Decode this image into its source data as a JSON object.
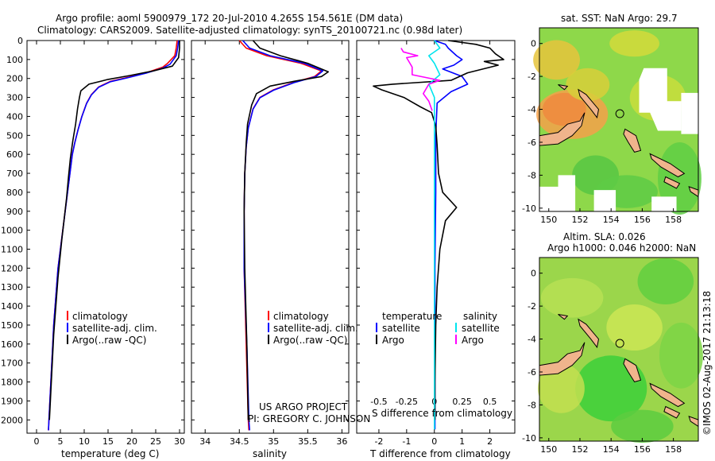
{
  "header": {
    "title1": "Argo profile: aoml 5900979_172 20-Jul-2010 4.265S 154.561E (DM data)",
    "title2": "Climatology: CARS2009. Satellite-adjusted climatology: synTS_20100721.nc (0.98d later)"
  },
  "colors": {
    "climatology": "#ff0000",
    "satellite": "#0000ff",
    "argo": "#000000",
    "salinity_satellite": "#00e5ee",
    "salinity_argo": "#ff00ff",
    "land": "#f0b48c"
  },
  "yaxis": {
    "ticks": [
      "0",
      "100",
      "200",
      "300",
      "400",
      "500",
      "600",
      "700",
      "800",
      "900",
      "1000",
      "1100",
      "1200",
      "1300",
      "1400",
      "1500",
      "1600",
      "1700",
      "1800",
      "1900",
      "2000"
    ]
  },
  "panels": {
    "temperature": {
      "xlabel": "temperature (deg C)",
      "ticks": [
        "0",
        "5",
        "10",
        "15",
        "20",
        "25",
        "30"
      ],
      "legend": [
        "climatology",
        "satellite-adj. clim.",
        "Argo(..raw -QC)"
      ]
    },
    "salinity": {
      "xlabel": "salinity",
      "ticks": [
        "34",
        "34.5",
        "35",
        "35.5",
        "36"
      ],
      "legend": [
        "climatology",
        "satellite-adj. clim.",
        "Argo(..raw -QC)"
      ],
      "credit1": "US ARGO PROJECT",
      "credit2": "PI: GREGORY C. JOHNSON"
    },
    "difference": {
      "xlabel": "T difference from climatology",
      "top_label": "S difference from climatology",
      "bottom_ticks": [
        "-2",
        "-1",
        "0",
        "1",
        "2"
      ],
      "top_ticks": [
        "-0.5",
        "-0.25",
        "0",
        "0.25",
        "0.5"
      ],
      "legend_temp_header": "temperature",
      "legend_sal_header": "salinity",
      "legend_temp": [
        "satellite",
        "Argo"
      ],
      "legend_sal": [
        "satellite",
        "Argo"
      ]
    }
  },
  "maps": {
    "sst_title": "sat. SST: NaN Argo: 29.7",
    "sla_title1": "Altim. SLA: 0.026",
    "sla_title2": "Argo h1000: 0.046 h2000: NaN",
    "lon_ticks": [
      "150",
      "152",
      "154",
      "156",
      "158"
    ],
    "lat_ticks": [
      "0",
      "-2",
      "-4",
      "-6",
      "-8",
      "-10"
    ],
    "float_lon": 154.561,
    "float_lat": -4.265
  },
  "stamp": "©IMOS 02-Aug-2017 21:13:18",
  "chart_data": [
    {
      "type": "line",
      "name": "temperature",
      "xlabel": "temperature (deg C)",
      "ylabel": "",
      "xlim": [
        -2,
        31
      ],
      "ylim": [
        2070,
        0
      ],
      "grid": false,
      "legend": "bottom-right",
      "series": [
        {
          "name": "climatology",
          "points": [
            [
              29.5,
              0
            ],
            [
              29.3,
              40
            ],
            [
              29.0,
              80
            ],
            [
              27.5,
              120
            ],
            [
              26.5,
              140
            ],
            [
              23,
              170
            ],
            [
              19,
              195
            ],
            [
              15.5,
              215
            ],
            [
              13,
              245
            ],
            [
              11.5,
              285
            ],
            [
              10.5,
              330
            ],
            [
              9.5,
              400
            ],
            [
              8.7,
              470
            ],
            [
              8,
              540
            ],
            [
              7.5,
              600
            ],
            [
              7,
              700
            ],
            [
              6.5,
              800
            ],
            [
              6,
              900
            ],
            [
              5.5,
              1000
            ],
            [
              5,
              1100
            ],
            [
              4.5,
              1200
            ],
            [
              4.2,
              1300
            ],
            [
              3.9,
              1400
            ],
            [
              3.6,
              1500
            ],
            [
              3.4,
              1600
            ],
            [
              3.2,
              1700
            ],
            [
              3,
              1800
            ],
            [
              2.8,
              1900
            ],
            [
              2.6,
              2000
            ],
            [
              2.5,
              2055
            ]
          ]
        },
        {
          "name": "satellite-adj. clim.",
          "points": [
            [
              29.8,
              0
            ],
            [
              29.6,
              40
            ],
            [
              29.3,
              80
            ],
            [
              28,
              125
            ],
            [
              26.5,
              145
            ],
            [
              23,
              172
            ],
            [
              19,
              197
            ],
            [
              15.5,
              217
            ],
            [
              13,
              247
            ],
            [
              11.5,
              287
            ],
            [
              10.5,
              332
            ],
            [
              9.5,
              402
            ],
            [
              8.7,
              472
            ],
            [
              8,
              542
            ],
            [
              7.5,
              602
            ],
            [
              7,
              702
            ],
            [
              6.5,
              802
            ],
            [
              6,
              902
            ],
            [
              5.5,
              1002
            ],
            [
              5,
              1102
            ],
            [
              4.5,
              1202
            ],
            [
              4.2,
              1302
            ],
            [
              3.9,
              1402
            ],
            [
              3.6,
              1502
            ],
            [
              3.4,
              1602
            ],
            [
              3.2,
              1702
            ],
            [
              3,
              1802
            ],
            [
              2.8,
              1902
            ],
            [
              2.6,
              2002
            ],
            [
              2.5,
              2055
            ]
          ]
        },
        {
          "name": "Argo(..raw -QC)",
          "points": [
            [
              30,
              0
            ],
            [
              30,
              40
            ],
            [
              29.8,
              90
            ],
            [
              28.5,
              135
            ],
            [
              24.5,
              160
            ],
            [
              19.5,
              185
            ],
            [
              15,
              205
            ],
            [
              11,
              230
            ],
            [
              9.3,
              265
            ],
            [
              9,
              300
            ],
            [
              8.6,
              360
            ],
            [
              8.2,
              440
            ],
            [
              7.6,
              530
            ],
            [
              7.1,
              620
            ],
            [
              6.7,
              720
            ],
            [
              6.3,
              830
            ],
            [
              5.8,
              940
            ],
            [
              5.3,
              1050
            ],
            [
              4.9,
              1150
            ],
            [
              4.5,
              1250
            ],
            [
              4.2,
              1350
            ],
            [
              3.9,
              1450
            ],
            [
              3.6,
              1550
            ],
            [
              3.4,
              1650
            ],
            [
              3.2,
              1750
            ],
            [
              3,
              1850
            ],
            [
              2.8,
              1950
            ],
            [
              2.7,
              2000
            ]
          ]
        }
      ]
    },
    {
      "type": "line",
      "name": "salinity",
      "xlabel": "salinity",
      "ylabel": "",
      "xlim": [
        33.8,
        36.1
      ],
      "ylim": [
        2070,
        0
      ],
      "grid": false,
      "legend": "bottom-right",
      "series": [
        {
          "name": "climatology",
          "points": [
            [
              34.5,
              0
            ],
            [
              34.6,
              40
            ],
            [
              34.9,
              80
            ],
            [
              35.4,
              120
            ],
            [
              35.7,
              160
            ],
            [
              35.6,
              190
            ],
            [
              35.3,
              220
            ],
            [
              35,
              260
            ],
            [
              34.8,
              300
            ],
            [
              34.7,
              360
            ],
            [
              34.63,
              460
            ],
            [
              34.6,
              560
            ],
            [
              34.58,
              700
            ],
            [
              34.57,
              900
            ],
            [
              34.57,
              1200
            ],
            [
              34.6,
              1600
            ],
            [
              34.63,
              2000
            ],
            [
              34.64,
              2055
            ]
          ]
        },
        {
          "name": "satellite-adj. clim.",
          "points": [
            [
              34.55,
              0
            ],
            [
              34.65,
              40
            ],
            [
              34.95,
              80
            ],
            [
              35.45,
              120
            ],
            [
              35.72,
              160
            ],
            [
              35.62,
              190
            ],
            [
              35.3,
              222
            ],
            [
              35,
              262
            ],
            [
              34.8,
              302
            ],
            [
              34.7,
              362
            ],
            [
              34.63,
              462
            ],
            [
              34.6,
              562
            ],
            [
              34.58,
              702
            ],
            [
              34.57,
              902
            ],
            [
              34.57,
              1202
            ],
            [
              34.61,
              1602
            ],
            [
              34.64,
              2002
            ],
            [
              34.65,
              2055
            ]
          ]
        },
        {
          "name": "Argo(..raw -QC)",
          "points": [
            [
              34.7,
              0
            ],
            [
              34.8,
              40
            ],
            [
              35.1,
              80
            ],
            [
              35.5,
              120
            ],
            [
              35.8,
              165
            ],
            [
              35.7,
              190
            ],
            [
              35.3,
              215
            ],
            [
              34.95,
              240
            ],
            [
              34.75,
              280
            ],
            [
              34.68,
              340
            ],
            [
              34.62,
              440
            ],
            [
              34.6,
              540
            ],
            [
              34.58,
              700
            ],
            [
              34.57,
              900
            ],
            [
              34.58,
              1200
            ],
            [
              34.61,
              1600
            ],
            [
              34.63,
              2000
            ]
          ]
        }
      ]
    },
    {
      "type": "line",
      "name": "difference",
      "xlabel": "T difference from climatology",
      "x2label": "S difference from climatology",
      "xlim": [
        -2.8,
        2.9
      ],
      "x2lim": [
        -0.7,
        0.725
      ],
      "ylim": [
        2070,
        0
      ],
      "grid": false,
      "legend": "bottom",
      "series": [
        {
          "name": "temperature satellite",
          "axis": "T",
          "points": [
            [
              0,
              0
            ],
            [
              0.4,
              20
            ],
            [
              0.5,
              40
            ],
            [
              0.8,
              80
            ],
            [
              1.0,
              100
            ],
            [
              0.7,
              130
            ],
            [
              0.3,
              150
            ],
            [
              1.0,
              190
            ],
            [
              1.2,
              230
            ],
            [
              0.6,
              270
            ],
            [
              0.1,
              330
            ],
            [
              0.05,
              500
            ],
            [
              0.05,
              800
            ],
            [
              0.02,
              1200
            ],
            [
              0.02,
              1600
            ],
            [
              0.02,
              2050
            ]
          ]
        },
        {
          "name": "temperature Argo",
          "axis": "T",
          "points": [
            [
              0.5,
              0
            ],
            [
              1.5,
              20
            ],
            [
              2.0,
              40
            ],
            [
              2.2,
              70
            ],
            [
              2.5,
              100
            ],
            [
              1.8,
              110
            ],
            [
              2.3,
              130
            ],
            [
              1.2,
              170
            ],
            [
              0.6,
              210
            ],
            [
              -1.5,
              230
            ],
            [
              -2.2,
              240
            ],
            [
              -1.9,
              260
            ],
            [
              -1.1,
              300
            ],
            [
              -0.5,
              350
            ],
            [
              -0.1,
              380
            ],
            [
              0.05,
              450
            ],
            [
              0.1,
              550
            ],
            [
              0.15,
              700
            ],
            [
              0.3,
              800
            ],
            [
              0.8,
              880
            ],
            [
              0.4,
              950
            ],
            [
              0.2,
              1100
            ],
            [
              0.1,
              1300
            ],
            [
              0.05,
              1500
            ],
            [
              0.02,
              1800
            ],
            [
              0.02,
              2000
            ]
          ]
        },
        {
          "name": "salinity satellite",
          "axis": "S",
          "points": [
            [
              0,
              0
            ],
            [
              0.05,
              40
            ],
            [
              -0.05,
              80
            ],
            [
              0,
              120
            ],
            [
              0.05,
              180
            ],
            [
              -0.05,
              230
            ],
            [
              0,
              300
            ],
            [
              0,
              800
            ],
            [
              0,
              2050
            ]
          ]
        },
        {
          "name": "salinity Argo",
          "axis": "S",
          "points": [
            [
              -0.3,
              40
            ],
            [
              -0.28,
              60
            ],
            [
              -0.15,
              80
            ],
            [
              -0.25,
              90
            ],
            [
              -0.2,
              140
            ],
            [
              -0.2,
              180
            ],
            [
              0.05,
              210
            ],
            [
              -0.05,
              230
            ],
            [
              -0.1,
              280
            ],
            [
              -0.05,
              320
            ],
            [
              -0.02,
              370
            ]
          ]
        }
      ]
    }
  ]
}
